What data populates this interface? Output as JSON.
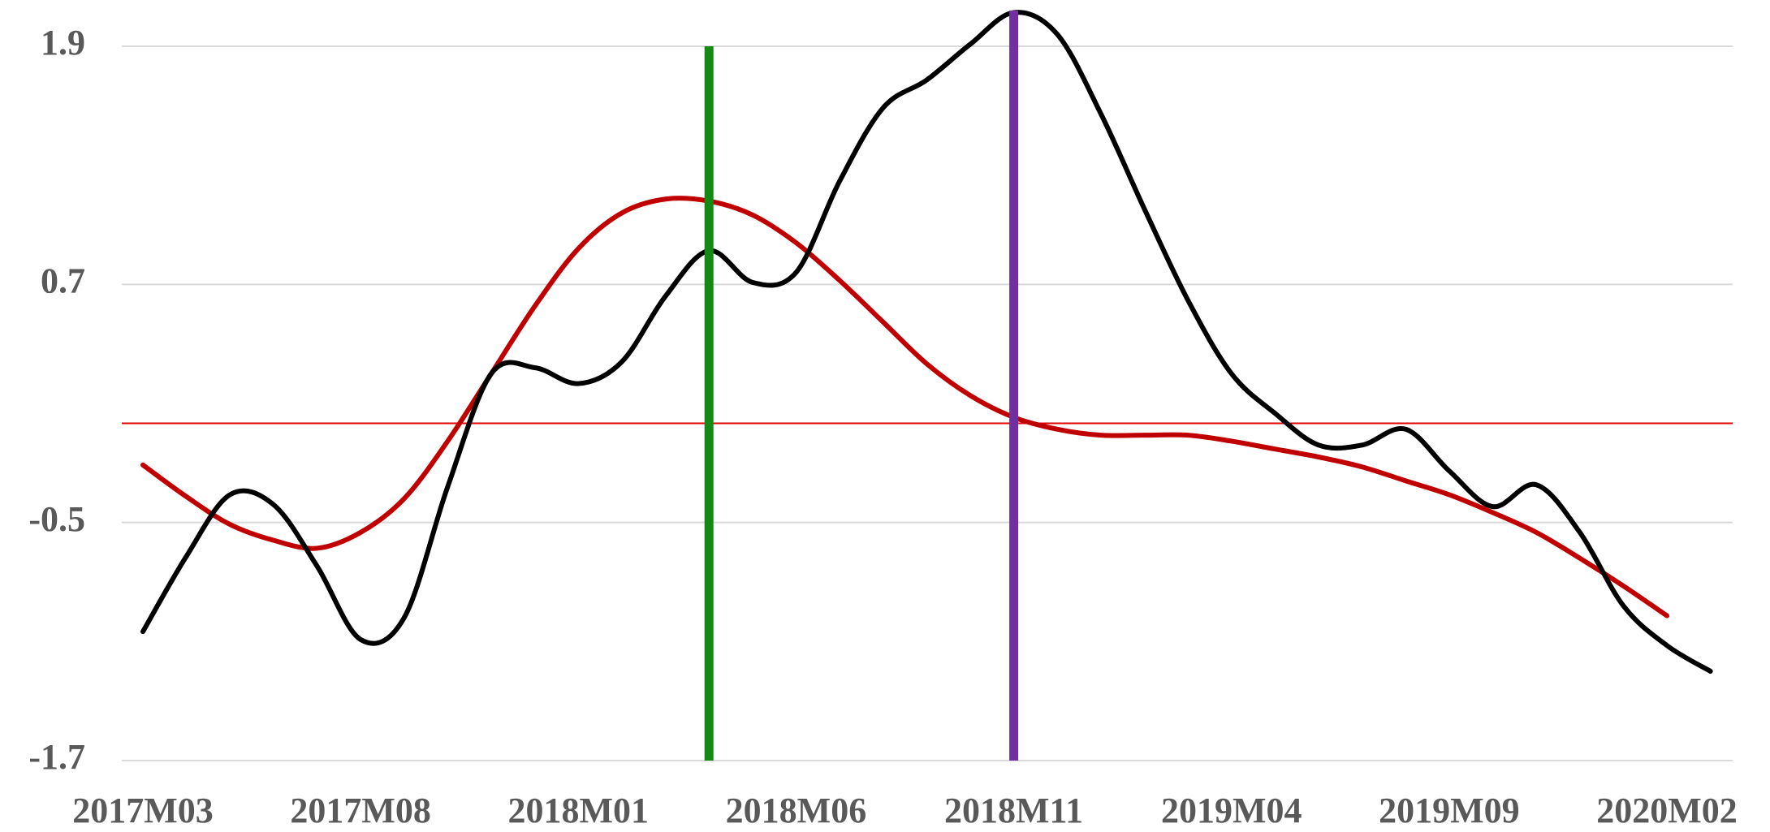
{
  "chart_data": {
    "type": "line",
    "categories": [
      "2017M03",
      null,
      null,
      null,
      null,
      "2017M08",
      null,
      null,
      null,
      null,
      "2018M01",
      null,
      null,
      null,
      null,
      "2018M06",
      null,
      null,
      null,
      null,
      "2018M11",
      null,
      null,
      null,
      null,
      "2019M04",
      null,
      null,
      null,
      null,
      "2019M09",
      null,
      null,
      null,
      null,
      "2020M02",
      null
    ],
    "series": [
      {
        "color": "#000000",
        "values": [
          -1.05,
          -0.67,
          -0.36,
          -0.41,
          -0.72,
          -1.09,
          -0.98,
          -0.32,
          0.25,
          0.28,
          0.2,
          0.31,
          0.64,
          0.87,
          0.71,
          0.76,
          1.22,
          1.59,
          1.73,
          1.91,
          2.07,
          1.96,
          1.56,
          1.08,
          0.62,
          0.25,
          0.05,
          -0.11,
          -0.11,
          -0.03,
          -0.24,
          -0.42,
          -0.31,
          -0.55,
          -0.92,
          -1.12,
          -1.25
        ]
      },
      {
        "color": "#c00000",
        "values": [
          -0.21,
          -0.37,
          -0.51,
          -0.59,
          -0.63,
          -0.55,
          -0.38,
          -0.09,
          0.25,
          0.59,
          0.88,
          1.06,
          1.13,
          1.12,
          1.05,
          0.91,
          0.72,
          0.51,
          0.3,
          0.14,
          0.03,
          -0.03,
          -0.06,
          -0.06,
          -0.06,
          -0.09,
          -0.13,
          -0.17,
          -0.22,
          -0.29,
          -0.36,
          -0.45,
          -0.55,
          -0.68,
          -0.82,
          -0.97,
          null
        ]
      }
    ],
    "ylim": [
      -1.7,
      1.9
    ],
    "yticks": [
      -1.7,
      -0.5,
      0.7,
      1.9
    ],
    "grid": true,
    "hlines": [
      {
        "y": 0,
        "color": "#e00000"
      }
    ],
    "vlines": [
      {
        "x": 13,
        "color": "#138a13",
        "ylim": [
          -1.7,
          1.9
        ]
      },
      {
        "x": 20,
        "color": "#7030a0",
        "ylim": [
          -1.7,
          2.08
        ]
      }
    ]
  }
}
